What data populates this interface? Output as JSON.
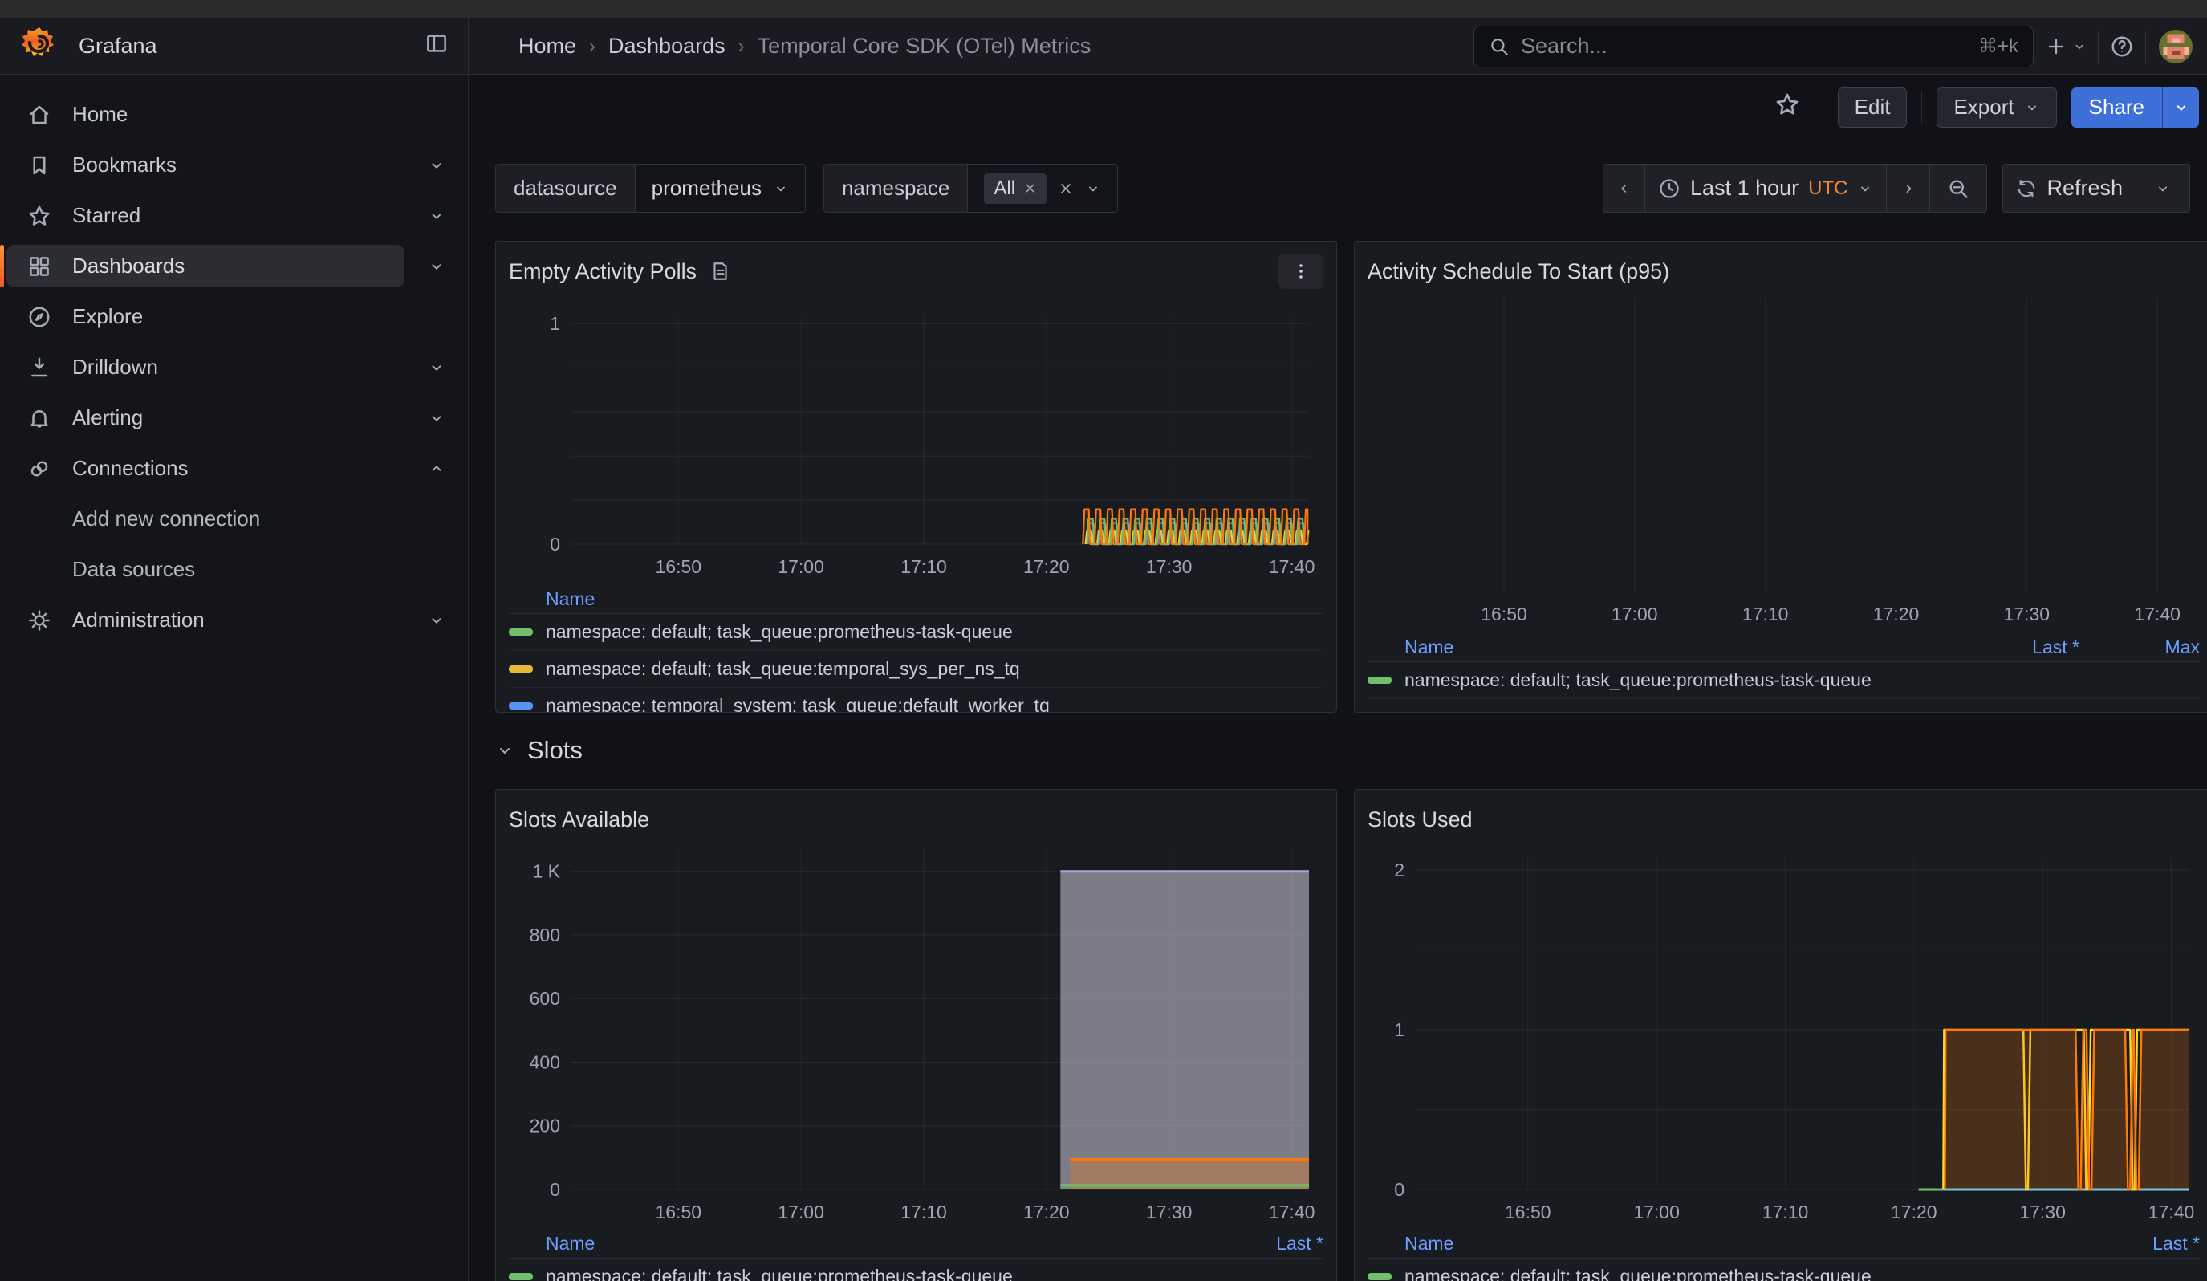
{
  "header": {
    "brand": "Grafana",
    "breadcrumbs": [
      "Home",
      "Dashboards",
      "Temporal Core SDK (OTel) Metrics"
    ],
    "search": {
      "placeholder": "Search...",
      "hotkey": "⌘+k"
    }
  },
  "toolbar": {
    "edit": "Edit",
    "export": "Export",
    "share": "Share"
  },
  "sidebar": {
    "items": [
      {
        "label": "Home",
        "icon": "home"
      },
      {
        "label": "Bookmarks",
        "icon": "bookmark",
        "chevron": "down"
      },
      {
        "label": "Starred",
        "icon": "star",
        "chevron": "down"
      },
      {
        "label": "Dashboards",
        "icon": "grid",
        "chevron": "down",
        "active": true
      },
      {
        "label": "Explore",
        "icon": "compass"
      },
      {
        "label": "Drilldown",
        "icon": "drilldown",
        "chevron": "down"
      },
      {
        "label": "Alerting",
        "icon": "bell",
        "chevron": "down"
      },
      {
        "label": "Connections",
        "icon": "connections",
        "chevron": "up"
      },
      {
        "label": "Add new connection",
        "sub": true
      },
      {
        "label": "Data sources",
        "sub": true
      },
      {
        "label": "Administration",
        "icon": "gear",
        "chevron": "down"
      }
    ]
  },
  "filters": {
    "datasource": {
      "label": "datasource",
      "value": "prometheus"
    },
    "namespace": {
      "label": "namespace",
      "value": "All"
    }
  },
  "timebar": {
    "range": "Last 1 hour",
    "timezone": "UTC",
    "refresh": "Refresh"
  },
  "section": {
    "title": "Slots"
  },
  "colors": {
    "accent_orange": "#FF780A",
    "green": "#73BF69",
    "yellow": "#FADE2A",
    "gold": "#EAB839",
    "blue": "#5794F2",
    "purple": "#B877D9",
    "light_purple": "#AFA3DB",
    "light_blue": "#79C7E3",
    "link_blue": "#6E9FFF",
    "share_blue": "#3D71D9"
  },
  "chart_data": [
    {
      "type": "line",
      "title": "Empty Activity Polls",
      "x_axis_range": [
        "16:41",
        "17:41"
      ],
      "xticks": [
        {
          "f": 0.145,
          "label": "16:50"
        },
        {
          "f": 0.3113,
          "label": "17:00"
        },
        {
          "f": 0.4777,
          "label": "17:10"
        },
        {
          "f": 0.644,
          "label": "17:20"
        },
        {
          "f": 0.8103,
          "label": "17:30"
        },
        {
          "f": 0.9767,
          "label": "17:40"
        }
      ],
      "ylim": [
        0,
        1.03
      ],
      "yticks": [
        {
          "v": 0,
          "label": "0"
        },
        {
          "v": 1,
          "label": "1"
        }
      ],
      "ygrid": [
        0,
        0.2,
        0.4,
        0.6,
        0.8,
        1.0
      ],
      "series": [
        {
          "name": "purple",
          "color": "#B877D9",
          "fill": "rgba(184,119,217,0.10)",
          "pulses": {
            "start": 0.698,
            "end": 0.998,
            "period": 0.0158,
            "duty": 0.5,
            "peak": 0.045
          }
        },
        {
          "name": "yellow",
          "color": "#FADE2A",
          "fill": "rgba(250,222,42,0.10)",
          "pulses": {
            "start": 0.697,
            "end": 0.998,
            "period": 0.0158,
            "duty": 0.5,
            "peak": 0.062
          }
        },
        {
          "name": "blue",
          "color": "#5794F2",
          "fill": "rgba(87,148,242,0.10)",
          "pulses": {
            "start": 0.7,
            "end": 0.998,
            "period": 0.0158,
            "duty": 0.5,
            "peak": 0.096
          }
        },
        {
          "name": "green",
          "color": "#73BF69",
          "fill": "rgba(115,191,105,0.10)",
          "pulses": {
            "start": 0.699,
            "end": 0.998,
            "period": 0.0158,
            "duty": 0.5,
            "peak": 0.115
          }
        },
        {
          "name": "orange",
          "color": "#FF780A",
          "fill": "rgba(255,120,10,0.10)",
          "pulses": {
            "start": 0.6935,
            "end": 0.998,
            "period": 0.0158,
            "duty": 0.5,
            "peak": 0.158
          }
        }
      ],
      "legend": {
        "cols": [
          "Name"
        ],
        "rows": [
          {
            "color": "#73BF69",
            "name": "namespace: default; task_queue:prometheus-task-queue"
          },
          {
            "color": "#EAB839",
            "name": "namespace: default; task_queue:temporal_sys_per_ns_tq"
          },
          {
            "color": "#5794F2",
            "name": "namespace: temporal_system; task_queue:default_worker_tq"
          }
        ]
      },
      "layout": {
        "l": 78,
        "r": 18,
        "t": 34,
        "b": 50
      }
    },
    {
      "type": "line",
      "title": "Activity Schedule To Start (p95)",
      "x_axis_range": [
        "16:41",
        "17:41"
      ],
      "xticks": [
        {
          "f": 0.145,
          "label": "16:50"
        },
        {
          "f": 0.3113,
          "label": "17:00"
        },
        {
          "f": 0.4777,
          "label": "17:10"
        },
        {
          "f": 0.644,
          "label": "17:20"
        },
        {
          "f": 0.8103,
          "label": "17:30"
        },
        {
          "f": 0.9767,
          "label": "17:40"
        }
      ],
      "ylim": [
        0,
        1
      ],
      "yticks": [],
      "ygrid": [],
      "series": [],
      "legend": {
        "cols": [
          "Name",
          "Last *",
          "Max"
        ],
        "rows": [
          {
            "color": "#73BF69",
            "name": "namespace: default; task_queue:prometheus-task-queue",
            "vals": [
              "",
              ""
            ]
          }
        ]
      },
      "layout": {
        "l": 28,
        "r": 30,
        "t": 10,
        "b": 50
      }
    },
    {
      "type": "area",
      "title": "Slots Available",
      "x_axis_range": [
        "16:41",
        "17:41"
      ],
      "xticks": [
        {
          "f": 0.145,
          "label": "16:50"
        },
        {
          "f": 0.3113,
          "label": "17:00"
        },
        {
          "f": 0.4777,
          "label": "17:10"
        },
        {
          "f": 0.644,
          "label": "17:20"
        },
        {
          "f": 0.8103,
          "label": "17:30"
        },
        {
          "f": 0.9767,
          "label": "17:40"
        }
      ],
      "ylim": [
        0,
        1075
      ],
      "yticks": [
        {
          "v": 0,
          "label": "0"
        },
        {
          "v": 200,
          "label": "200"
        },
        {
          "v": 400,
          "label": "400"
        },
        {
          "v": 600,
          "label": "600"
        },
        {
          "v": 800,
          "label": "800"
        },
        {
          "v": 1000,
          "label": "1 K"
        }
      ],
      "ygrid": [
        0,
        200,
        400,
        600,
        800,
        1000
      ],
      "series": [
        {
          "name": "light-purple 1000",
          "color": "#AFA3DB",
          "width": 3,
          "fill": "rgba(208,202,222,0.55)",
          "points": [
            [
              0.663,
              1000
            ],
            [
              1,
              1000
            ]
          ]
        },
        {
          "name": "orange 95",
          "color": "#FF780A",
          "width": 3,
          "fill": "rgba(255,120,10,0.30)",
          "points": [
            [
              0.676,
              95
            ],
            [
              1,
              95
            ]
          ]
        },
        {
          "name": "green 13",
          "color": "#73BF69",
          "width": 3,
          "fill": "rgba(115,191,105,0.25)",
          "points": [
            [
              0.663,
              13
            ],
            [
              1,
              13
            ]
          ]
        }
      ],
      "legend": {
        "cols": [
          "Name",
          "Last *"
        ],
        "rows": [
          {
            "color": "#73BF69",
            "name": "namespace: default; task_queue:prometheus-task-queue",
            "vals": [
              ""
            ]
          }
        ]
      },
      "layout": {
        "l": 78,
        "r": 18,
        "t": 12,
        "b": 50
      }
    },
    {
      "type": "line",
      "title": "Slots Used",
      "x_axis_range": [
        "16:41",
        "17:41"
      ],
      "xticks": [
        {
          "f": 0.145,
          "label": "16:50"
        },
        {
          "f": 0.3113,
          "label": "17:00"
        },
        {
          "f": 0.4777,
          "label": "17:10"
        },
        {
          "f": 0.644,
          "label": "17:20"
        },
        {
          "f": 0.8103,
          "label": "17:30"
        },
        {
          "f": 0.9767,
          "label": "17:40"
        }
      ],
      "ylim": [
        0,
        2.08
      ],
      "yticks": [
        {
          "v": 0,
          "label": "0"
        },
        {
          "v": 1,
          "label": "1"
        },
        {
          "v": 2,
          "label": "2"
        }
      ],
      "ygrid": [
        0,
        0.5,
        1,
        1.5,
        2
      ],
      "series": [
        {
          "name": "green 0",
          "color": "#73BF69",
          "width": 3,
          "points": [
            [
              0.65,
              0
            ],
            [
              0.682,
              0
            ]
          ]
        },
        {
          "name": "light-blue 0",
          "color": "#79C7E3",
          "width": 3,
          "points": [
            [
              0.682,
              0
            ],
            [
              1,
              0
            ]
          ]
        },
        {
          "name": "yellow 1",
          "color": "#FADE2A",
          "width": 2.5,
          "base_dips": {
            "start": 0.682,
            "end": 1,
            "value": 1,
            "dips": [
              0.79,
              0.868,
              0.928
            ],
            "w": 0.0045
          }
        },
        {
          "name": "orange 1",
          "color": "#FF780A",
          "width": 2.5,
          "fill": "rgba(255,120,10,0.22)",
          "base_dips": {
            "start": 0.684,
            "end": 1,
            "value": 1,
            "dips": [
              0.858,
              0.872,
              0.922,
              0.933
            ],
            "w": 0.005
          }
        }
      ],
      "legend": {
        "cols": [
          "Name",
          "Last *"
        ],
        "rows": [
          {
            "color": "#73BF69",
            "name": "namespace: default; task_queue:prometheus-task-queue",
            "vals": [
              ""
            ]
          }
        ]
      },
      "layout": {
        "l": 60,
        "r": 13,
        "t": 24,
        "b": 50
      }
    }
  ]
}
